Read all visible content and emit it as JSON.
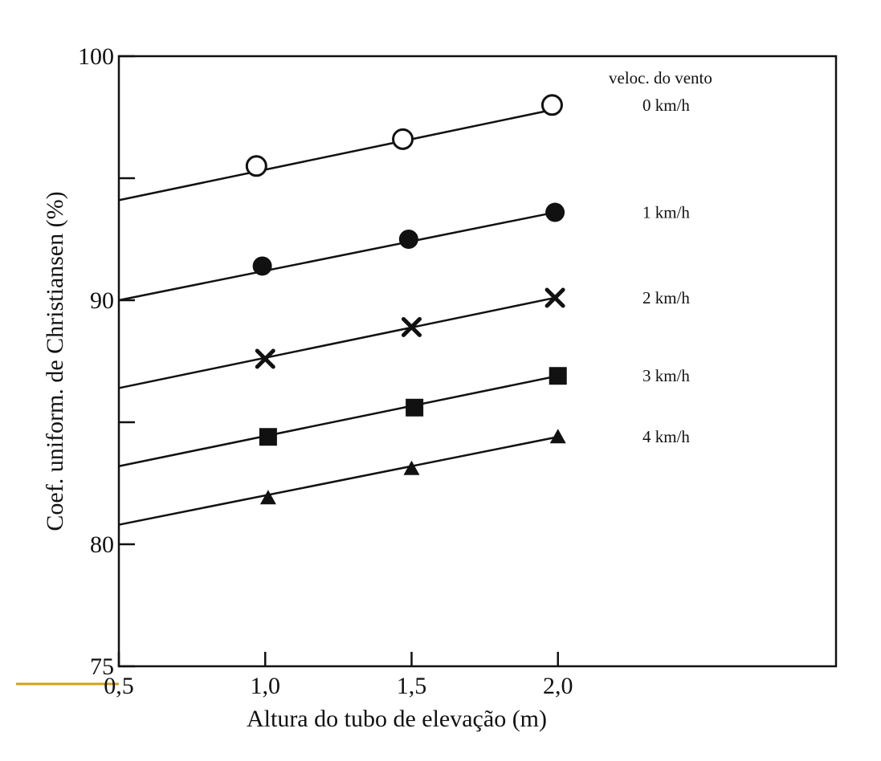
{
  "chart_data": {
    "type": "line",
    "xlabel": "Altura do tubo de elevação (m)",
    "ylabel": "Coef. uniform. de Christiansen (%)",
    "xlim": [
      0.5,
      2.95
    ],
    "ylim": [
      75,
      100
    ],
    "x_ticks": [
      0.5,
      1.0,
      1.5,
      2.0
    ],
    "x_tick_labels": [
      "0,5",
      "1,0",
      "1,5",
      "2,0"
    ],
    "y_ticks": [
      75,
      80,
      85,
      90,
      95,
      100
    ],
    "y_tick_labels": [
      "75",
      "80",
      "",
      "90",
      "",
      "100"
    ],
    "grid": false,
    "legend_title": "veloc. do vento",
    "legend_placement": "right, beside line ends",
    "series": [
      {
        "name": "0 km/h",
        "marker": "open-circle",
        "points": [
          [
            0.97,
            95.5
          ],
          [
            1.47,
            96.6
          ],
          [
            1.98,
            98.0
          ]
        ],
        "fit_line": [
          [
            0.5,
            94.1
          ],
          [
            1.98,
            97.8
          ]
        ]
      },
      {
        "name": "1 km/h",
        "marker": "filled-circle",
        "points": [
          [
            0.99,
            91.4
          ],
          [
            1.49,
            92.5
          ],
          [
            1.99,
            93.6
          ]
        ],
        "fit_line": [
          [
            0.5,
            90.0
          ],
          [
            1.99,
            93.6
          ]
        ]
      },
      {
        "name": "2 km/h",
        "marker": "x",
        "points": [
          [
            1.0,
            87.6
          ],
          [
            1.5,
            88.9
          ],
          [
            1.99,
            90.1
          ]
        ],
        "fit_line": [
          [
            0.5,
            86.4
          ],
          [
            1.99,
            90.1
          ]
        ]
      },
      {
        "name": "3 km/h",
        "marker": "filled-square",
        "points": [
          [
            1.01,
            84.4
          ],
          [
            1.51,
            85.6
          ],
          [
            2.0,
            86.9
          ]
        ],
        "fit_line": [
          [
            0.5,
            83.2
          ],
          [
            2.0,
            86.9
          ]
        ]
      },
      {
        "name": "4 km/h",
        "marker": "filled-triangle",
        "points": [
          [
            1.01,
            81.9
          ],
          [
            1.5,
            83.1
          ],
          [
            2.0,
            84.4
          ]
        ],
        "fit_line": [
          [
            0.5,
            80.8
          ],
          [
            2.0,
            84.4
          ]
        ]
      }
    ]
  },
  "colors": {
    "ink": "#111111",
    "background": "#ffffff",
    "accent": "#d4a017"
  }
}
